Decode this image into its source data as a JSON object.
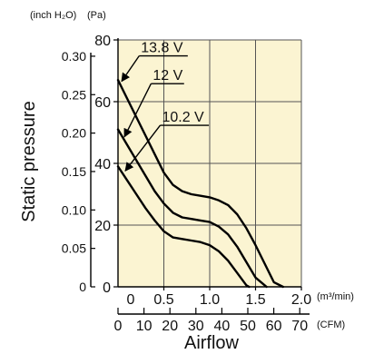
{
  "chart_data": {
    "type": "line",
    "xlabel": "Airflow",
    "ylabel": "Static pressure",
    "x_unit_primary": "(m³/min)",
    "x_unit_secondary": "(CFM)",
    "y_unit_inch": "(inch H₂O)",
    "y_unit_pa": "(Pa)",
    "xlim": [
      0,
      2.0
    ],
    "ylim": [
      0,
      80
    ],
    "x_ticks": [
      "0.5",
      "1.0",
      "1.5",
      "2.0"
    ],
    "x_origin_label": "0",
    "cfm_ticks": [
      "0",
      "10",
      "20",
      "30",
      "40",
      "50",
      "60",
      "70"
    ],
    "pa_ticks": [
      "0",
      "20",
      "40",
      "60",
      "80"
    ],
    "inch_ticks": [
      "0",
      "0.05",
      "0.10",
      "0.15",
      "0.20",
      "0.25",
      "0.30"
    ],
    "grid": true,
    "plot_background": "#fbf4d2",
    "series": [
      {
        "name": "13.8 V",
        "x": [
          0,
          0.1,
          0.2,
          0.3,
          0.4,
          0.5,
          0.6,
          0.7,
          0.8,
          0.9,
          1.0,
          1.1,
          1.2,
          1.3,
          1.4,
          1.5,
          1.6,
          1.7,
          1.8
        ],
        "y": [
          67,
          61,
          55,
          49,
          43,
          37,
          33,
          31,
          30,
          29.5,
          29,
          28,
          26.5,
          23.5,
          19,
          13.5,
          7.5,
          1.5,
          0
        ]
      },
      {
        "name": "12 V",
        "x": [
          0,
          0.1,
          0.2,
          0.3,
          0.4,
          0.5,
          0.6,
          0.7,
          0.8,
          0.9,
          1.0,
          1.1,
          1.2,
          1.3,
          1.4,
          1.5,
          1.6,
          1.62
        ],
        "y": [
          51,
          46,
          41,
          36,
          31,
          27,
          24,
          22.5,
          22,
          21.5,
          21,
          19.5,
          17,
          13,
          8,
          3,
          0.5,
          0
        ]
      },
      {
        "name": "10.2 V",
        "x": [
          0,
          0.1,
          0.2,
          0.3,
          0.4,
          0.5,
          0.6,
          0.7,
          0.8,
          0.9,
          1.0,
          1.1,
          1.2,
          1.3,
          1.4,
          1.43
        ],
        "y": [
          39,
          34.5,
          30,
          25.5,
          21.5,
          18,
          16,
          15.5,
          15,
          14.5,
          13.5,
          11.5,
          8.5,
          4.5,
          0.5,
          0
        ]
      }
    ],
    "labels": [
      {
        "text": "13.8 V",
        "series": 0,
        "pos": [
          0.25,
          76
        ],
        "attach": [
          0.02,
          66
        ]
      },
      {
        "text": "12 V",
        "series": 1,
        "pos": [
          0.38,
          67
        ],
        "attach": [
          0.05,
          48
        ]
      },
      {
        "text": "10.2 V",
        "series": 2,
        "pos": [
          0.48,
          53.5
        ],
        "attach": [
          0.06,
          37
        ]
      }
    ],
    "colors": {
      "line": "#000000",
      "grid": "#555555"
    }
  }
}
